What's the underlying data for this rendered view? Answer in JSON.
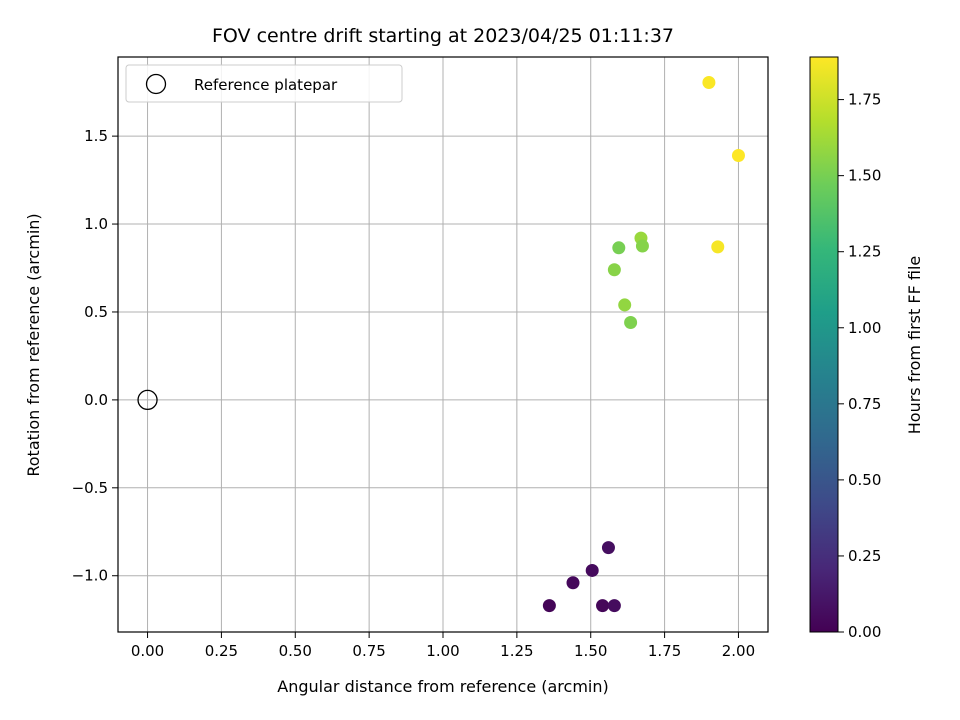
{
  "chart_data": {
    "type": "scatter",
    "title": "FOV centre drift starting at 2023/04/25 01:11:37",
    "xlabel": "Angular distance from reference (arcmin)",
    "ylabel": "Rotation from reference (arcmin)",
    "xlim": [
      -0.1,
      2.1
    ],
    "ylim": [
      -1.32,
      1.95
    ],
    "xticks": [
      0.0,
      0.25,
      0.5,
      0.75,
      1.0,
      1.25,
      1.5,
      1.75,
      2.0
    ],
    "xtick_labels": [
      "0.00",
      "0.25",
      "0.50",
      "0.75",
      "1.00",
      "1.25",
      "1.50",
      "1.75",
      "2.00"
    ],
    "yticks": [
      -1.0,
      -0.5,
      0.0,
      0.5,
      1.0,
      1.5
    ],
    "ytick_labels": [
      "−1.0",
      "−0.5",
      "0.0",
      "0.5",
      "1.0",
      "1.5"
    ],
    "grid": true,
    "legend": {
      "placement": "upper-left",
      "entries": [
        "Reference platepar"
      ]
    },
    "reference_point": {
      "x": 0.0,
      "y": 0.0
    },
    "colorbar": {
      "label": "Hours from first FF file",
      "min": 0.0,
      "max": 1.89,
      "colormap": "viridis",
      "ticks": [
        0.0,
        0.25,
        0.5,
        0.75,
        1.0,
        1.25,
        1.5,
        1.75
      ],
      "tick_labels": [
        "0.00",
        "0.25",
        "0.50",
        "0.75",
        "1.00",
        "1.25",
        "1.50",
        "1.75"
      ]
    },
    "points": [
      {
        "x": 1.36,
        "y": -1.17,
        "hours": 0.02
      },
      {
        "x": 1.44,
        "y": -1.04,
        "hours": 0.04
      },
      {
        "x": 1.505,
        "y": -0.97,
        "hours": 0.05
      },
      {
        "x": 1.54,
        "y": -1.17,
        "hours": 0.03
      },
      {
        "x": 1.56,
        "y": -0.84,
        "hours": 0.07
      },
      {
        "x": 1.58,
        "y": -1.17,
        "hours": 0.06
      },
      {
        "x": 1.58,
        "y": 0.74,
        "hours": 1.55
      },
      {
        "x": 1.595,
        "y": 0.865,
        "hours": 1.5
      },
      {
        "x": 1.615,
        "y": 0.54,
        "hours": 1.58
      },
      {
        "x": 1.635,
        "y": 0.44,
        "hours": 1.52
      },
      {
        "x": 1.67,
        "y": 0.92,
        "hours": 1.6
      },
      {
        "x": 1.675,
        "y": 0.875,
        "hours": 1.54
      },
      {
        "x": 1.9,
        "y": 1.805,
        "hours": 1.88
      },
      {
        "x": 1.93,
        "y": 0.87,
        "hours": 1.87
      },
      {
        "x": 2.0,
        "y": 1.39,
        "hours": 1.89
      }
    ]
  }
}
